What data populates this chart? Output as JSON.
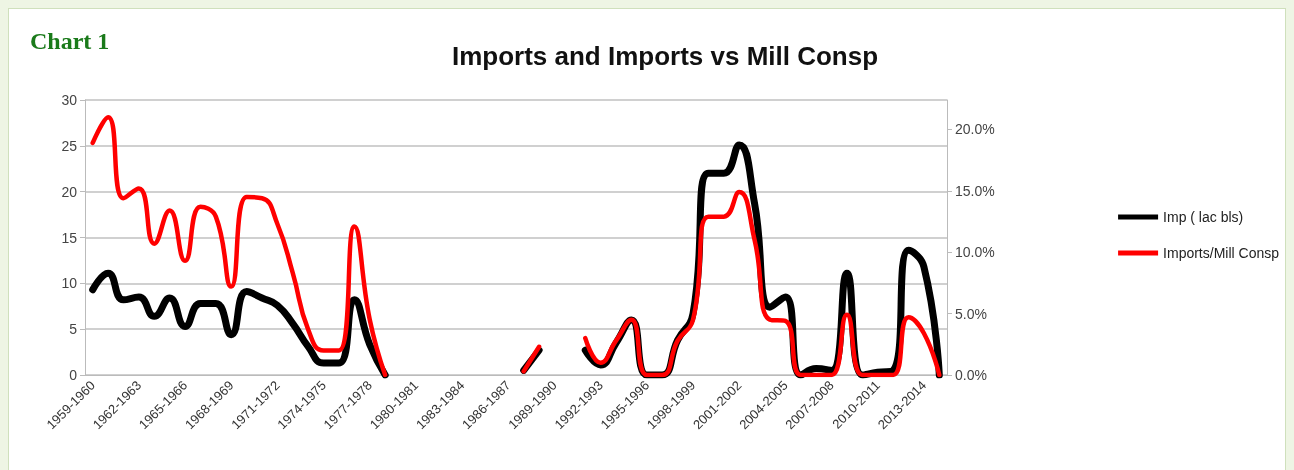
{
  "chart_data": {
    "type": "line",
    "title": "Imports and Imports vs Mill Consp",
    "annotations": [
      "Chart 1"
    ],
    "categories": [
      "1959-1960",
      null,
      null,
      "1962-1963",
      null,
      null,
      "1965-1966",
      null,
      null,
      "1968-1969",
      null,
      null,
      "1971-1972",
      null,
      null,
      "1974-1975",
      null,
      null,
      "1977-1978",
      null,
      null,
      "1980-1981",
      null,
      null,
      "1983-1984",
      null,
      null,
      "1986-1987",
      null,
      null,
      "1989-1990",
      null,
      null,
      "1992-1993",
      null,
      null,
      "1995-1996",
      null,
      null,
      "1998-1999",
      null,
      null,
      "2001-2002",
      null,
      null,
      "2004-2005",
      null,
      null,
      "2007-2008",
      null,
      null,
      "2010-2011",
      null,
      null,
      "2013-2014",
      null
    ],
    "series": [
      {
        "name": "Imp ( lac bls)",
        "color": "#000000",
        "values": [
          9.3,
          11.1,
          8.2,
          8.5,
          6.4,
          8.4,
          5.3,
          7.8,
          7.8,
          4.4,
          9.1,
          8.4,
          7.6,
          5.6,
          3.1,
          1.3,
          1.3,
          8.2,
          3.3,
          0,
          null,
          null,
          null,
          null,
          null,
          null,
          null,
          null,
          0.5,
          2.7,
          null,
          null,
          2.7,
          1.1,
          3.5,
          6,
          0,
          0,
          3.8,
          6.7,
          22,
          22,
          25.1,
          18.7,
          7.4,
          8.5,
          0,
          0.7,
          0.5,
          11.1,
          0,
          0.3,
          0.5,
          13.6,
          11.8,
          0
        ]
      },
      {
        "name": "Imports/Mill Consp",
        "color": "#ff0000",
        "axis": "y2",
        "values": [
          18.9,
          21,
          14.4,
          15.2,
          10.7,
          13.4,
          9.3,
          13.7,
          12.9,
          7.2,
          14.5,
          14.4,
          12.3,
          8.3,
          3.7,
          2,
          2,
          12.1,
          4.5,
          0,
          null,
          null,
          null,
          null,
          null,
          null,
          null,
          null,
          0.3,
          2.3,
          null,
          null,
          3,
          1,
          2.8,
          4.5,
          0,
          0,
          2.8,
          4.5,
          12.9,
          12.9,
          14.9,
          11,
          4.5,
          4.4,
          0,
          0,
          0,
          4.9,
          0,
          0,
          0,
          4.7,
          3.4,
          0
        ]
      }
    ],
    "ylim": [
      0,
      30
    ],
    "yticks": [
      0,
      5,
      10,
      15,
      20,
      25,
      30
    ],
    "y2lim": [
      0,
      22.4
    ],
    "y2ticks": [
      {
        "value": 0,
        "label": "0.0%"
      },
      {
        "value": 5,
        "label": "5.0%"
      },
      {
        "value": 10,
        "label": "10.0%"
      },
      {
        "value": 15,
        "label": "15.0%"
      },
      {
        "value": 20,
        "label": "20.0%"
      }
    ],
    "grid": "y",
    "legend": "right",
    "marker": "none"
  }
}
